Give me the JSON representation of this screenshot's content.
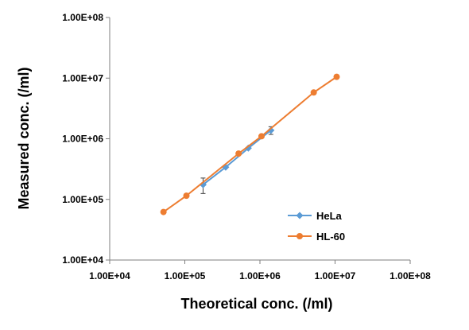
{
  "chart_data": {
    "type": "scatter",
    "xscale": "log",
    "yscale": "log",
    "xlim": [
      10000,
      100000000
    ],
    "ylim": [
      10000,
      100000000
    ],
    "x_tick_values": [
      10000,
      100000,
      1000000,
      10000000,
      100000000
    ],
    "y_tick_values": [
      10000,
      100000,
      1000000,
      10000000,
      100000000
    ],
    "x_tick_labels": [
      "1.00E+04",
      "1.00E+05",
      "1.00E+06",
      "1.00E+07",
      "1.00E+08"
    ],
    "y_tick_labels": [
      "1.00E+04",
      "1.00E+05",
      "1.00E+06",
      "1.00E+07",
      "1.00E+08"
    ],
    "xlabel": "Theoretical conc. (/ml)",
    "ylabel": "Measured conc.  (/ml)",
    "grid": false,
    "legend_position": "bottom-right",
    "series": [
      {
        "name": "HeLa",
        "color": "#5B9BD5",
        "marker": "diamond",
        "points": [
          {
            "x": 175000,
            "y": 175000,
            "err": 50000
          },
          {
            "x": 350000,
            "y": 340000,
            "err": 0
          },
          {
            "x": 700000,
            "y": 700000,
            "err": 0
          },
          {
            "x": 1400000,
            "y": 1380000,
            "err": 200000
          }
        ]
      },
      {
        "name": "HL-60",
        "color": "#ED7D31",
        "marker": "circle",
        "points": [
          {
            "x": 52000,
            "y": 62000
          },
          {
            "x": 105000,
            "y": 115000
          },
          {
            "x": 520000,
            "y": 570000
          },
          {
            "x": 1050000,
            "y": 1100000
          },
          {
            "x": 5200000,
            "y": 5800000
          },
          {
            "x": 10500000,
            "y": 10500000
          }
        ]
      }
    ]
  }
}
